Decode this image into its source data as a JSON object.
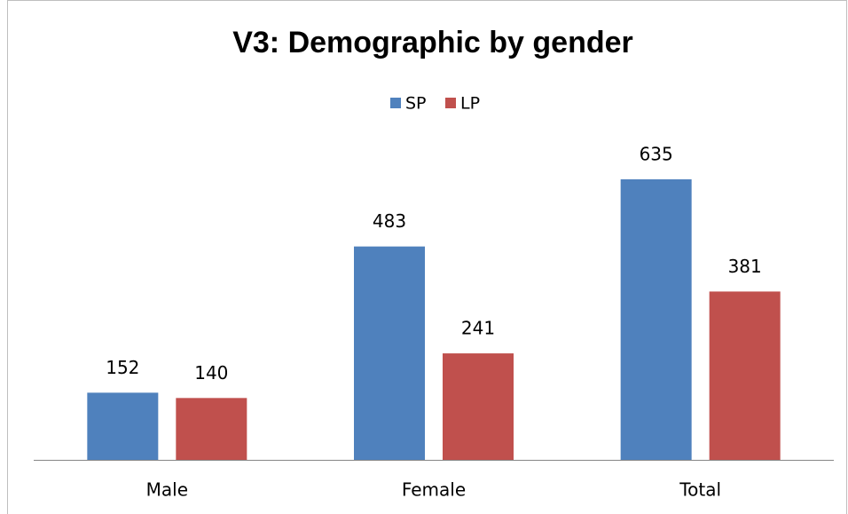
{
  "chart_data": {
    "type": "bar",
    "title": "V3: Demographic by gender",
    "categories": [
      "Male",
      "Female",
      "Total"
    ],
    "series": [
      {
        "name": "SP",
        "color": "#4f81bd",
        "values": [
          152,
          483,
          635
        ]
      },
      {
        "name": "LP",
        "color": "#c0504d",
        "values": [
          140,
          241,
          381
        ]
      }
    ],
    "legend": "top"
  }
}
